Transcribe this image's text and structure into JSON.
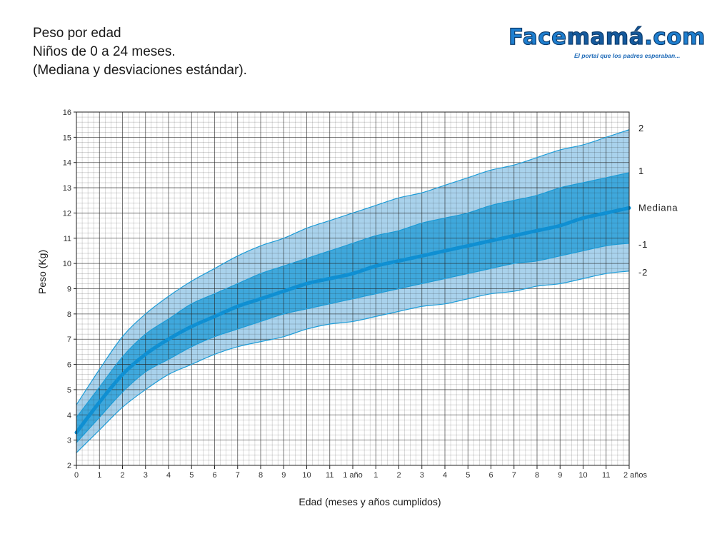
{
  "header": {
    "title_line1": "Peso por edad",
    "title_line2": "Niños de 0 a 24 meses.",
    "title_line3": "(Mediana y desviaciones estándar)."
  },
  "logo": {
    "text_part1": "Face",
    "text_part2": "mamá",
    "text_part3": ".com",
    "tagline": "El portal que los padres esperaban..."
  },
  "colors": {
    "outer_band": "#a9d2ec",
    "inner_band": "#3fa8dc",
    "curve_line": "#1e9cd7",
    "median_line": "#0f8fd2",
    "grid": "#222222"
  },
  "chart_data": {
    "type": "line",
    "xlabel": "Edad (meses y años cumplidos)",
    "ylabel": "Peso (Kg)",
    "xlim": [
      0,
      24
    ],
    "ylim": [
      2,
      16
    ],
    "grid": true,
    "x_tick_labels": [
      "0",
      "1",
      "2",
      "3",
      "4",
      "5",
      "6",
      "7",
      "8",
      "9",
      "10",
      "11",
      "1 año",
      "1",
      "2",
      "3",
      "4",
      "5",
      "6",
      "7",
      "8",
      "9",
      "10",
      "11",
      "2 años"
    ],
    "y_tick_labels": [
      "2",
      "3",
      "4",
      "5",
      "6",
      "7",
      "8",
      "9",
      "10",
      "11",
      "12",
      "13",
      "14",
      "15",
      "16"
    ],
    "x": [
      0,
      1,
      2,
      3,
      4,
      5,
      6,
      7,
      8,
      9,
      10,
      11,
      12,
      13,
      14,
      15,
      16,
      17,
      18,
      19,
      20,
      21,
      22,
      23,
      24
    ],
    "series": [
      {
        "name": "2",
        "values": [
          4.4,
          5.8,
          7.1,
          8.0,
          8.7,
          9.3,
          9.8,
          10.3,
          10.7,
          11.0,
          11.4,
          11.7,
          12.0,
          12.3,
          12.6,
          12.8,
          13.1,
          13.4,
          13.7,
          13.9,
          14.2,
          14.5,
          14.7,
          15.0,
          15.3
        ]
      },
      {
        "name": "1",
        "values": [
          3.9,
          5.1,
          6.3,
          7.2,
          7.8,
          8.4,
          8.8,
          9.2,
          9.6,
          9.9,
          10.2,
          10.5,
          10.8,
          11.1,
          11.3,
          11.6,
          11.8,
          12.0,
          12.3,
          12.5,
          12.7,
          13.0,
          13.2,
          13.4,
          13.6
        ]
      },
      {
        "name": "Mediana",
        "values": [
          3.3,
          4.5,
          5.6,
          6.4,
          7.0,
          7.5,
          7.9,
          8.3,
          8.6,
          8.9,
          9.2,
          9.4,
          9.6,
          9.9,
          10.1,
          10.3,
          10.5,
          10.7,
          10.9,
          11.1,
          11.3,
          11.5,
          11.8,
          12.0,
          12.2
        ]
      },
      {
        "name": "-1",
        "values": [
          2.9,
          3.9,
          4.9,
          5.7,
          6.2,
          6.7,
          7.1,
          7.4,
          7.7,
          8.0,
          8.2,
          8.4,
          8.6,
          8.8,
          9.0,
          9.2,
          9.4,
          9.6,
          9.8,
          10.0,
          10.1,
          10.3,
          10.5,
          10.7,
          10.8
        ]
      },
      {
        "name": "-2",
        "values": [
          2.5,
          3.4,
          4.3,
          5.0,
          5.6,
          6.0,
          6.4,
          6.7,
          6.9,
          7.1,
          7.4,
          7.6,
          7.7,
          7.9,
          8.1,
          8.3,
          8.4,
          8.6,
          8.8,
          8.9,
          9.1,
          9.2,
          9.4,
          9.6,
          9.7
        ]
      }
    ]
  }
}
